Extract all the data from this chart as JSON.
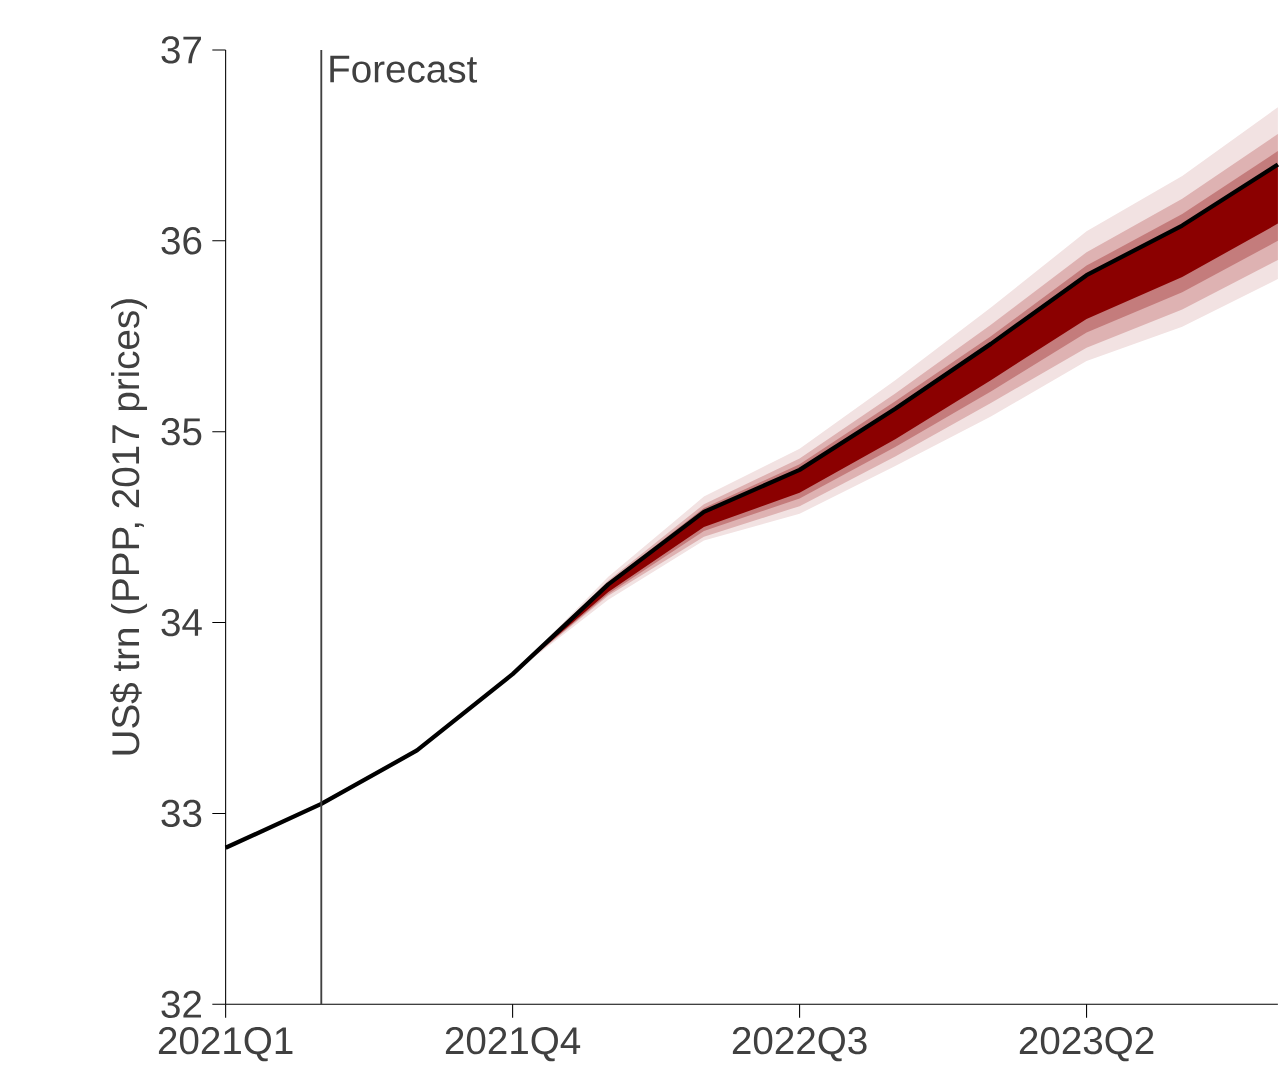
{
  "chart_data": {
    "type": "line",
    "ylabel": "US$ trn (PPP, 2017 prices)",
    "categories": [
      "2021Q1",
      null,
      null,
      "2021Q4",
      null,
      null,
      "2022Q3",
      null,
      null,
      "2023Q2",
      null,
      null
    ],
    "ylim": [
      32,
      37
    ],
    "yticks": [
      32,
      33,
      34,
      35,
      36,
      37
    ],
    "series": [
      {
        "color": "#f2e2e2",
        "values": [
          null,
          null,
          null,
          null,
          null,
          null,
          null,
          null,
          null,
          null,
          null,
          null
        ],
        "lower": [
          null,
          null,
          null,
          33.73,
          34.12,
          34.43,
          34.57,
          34.82,
          35.08,
          35.37,
          35.55,
          35.8
        ],
        "upper": [
          null,
          null,
          null,
          33.73,
          34.24,
          34.66,
          34.91,
          35.27,
          35.65,
          36.05,
          36.34,
          36.7
        ]
      },
      {
        "color": "#deb2b2",
        "values": [
          null,
          null,
          null,
          null,
          null,
          null,
          null,
          null,
          null,
          null,
          null,
          null
        ],
        "lower": [
          null,
          null,
          null,
          33.73,
          34.14,
          34.45,
          34.61,
          34.87,
          35.15,
          35.44,
          35.64,
          35.9
        ],
        "upper": [
          null,
          null,
          null,
          33.73,
          34.22,
          34.62,
          34.86,
          35.2,
          35.56,
          35.94,
          36.22,
          36.56
        ]
      },
      {
        "color": "#c47c7c",
        "values": [
          null,
          null,
          null,
          null,
          null,
          null,
          null,
          null,
          null,
          null,
          null,
          null
        ],
        "lower": [
          null,
          null,
          null,
          33.73,
          34.15,
          34.48,
          34.65,
          34.92,
          35.21,
          35.52,
          35.73,
          36.0
        ],
        "upper": [
          null,
          null,
          null,
          33.73,
          34.21,
          34.6,
          34.83,
          35.16,
          35.5,
          35.87,
          36.14,
          36.47
        ]
      },
      {
        "color": "#8b0000",
        "values": [
          null,
          null,
          null,
          null,
          null,
          null,
          null,
          null,
          null,
          null,
          null,
          null
        ],
        "lower": [
          null,
          null,
          null,
          33.73,
          34.16,
          34.5,
          34.68,
          34.96,
          35.27,
          35.59,
          35.81,
          36.09
        ],
        "upper": [
          null,
          null,
          null,
          33.73,
          34.2,
          34.58,
          34.8,
          35.12,
          35.46,
          35.82,
          36.08,
          36.4
        ]
      },
      {
        "color": "#000000",
        "values": [
          32.82,
          33.05,
          33.33,
          33.73,
          34.2,
          34.58,
          34.8,
          35.12,
          35.46,
          35.82,
          36.08,
          36.4
        ]
      }
    ],
    "annotations": [
      "Forecast"
    ]
  }
}
